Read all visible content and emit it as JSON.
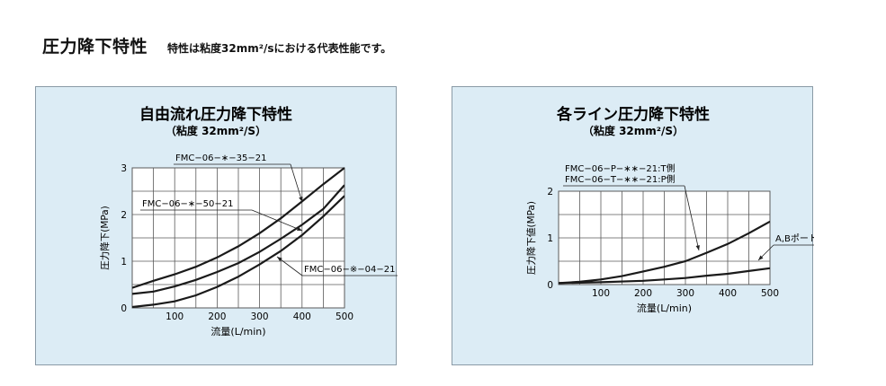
{
  "page": {
    "title": "圧力降下特性",
    "subtitle": "特性は粘度32mm²/sにおける代表性能です。"
  },
  "colors": {
    "panel_bg": "#dcecf5",
    "grid": "#5a5a5a",
    "line": "#1a1a1a",
    "plot_bg": "#ffffff"
  },
  "chart_data": [
    {
      "type": "line",
      "title": "自由流れ圧力降下特性",
      "subtitle": "（粘度 32mm²/S）",
      "xlabel": "流量(L/min)",
      "ylabel": "圧力降下(MPa)",
      "xlim": [
        0,
        500
      ],
      "ylim": [
        0,
        3
      ],
      "x_ticks": [
        100,
        200,
        300,
        400,
        500
      ],
      "y_ticks": [
        0,
        1,
        2,
        3
      ],
      "grid": true,
      "series": [
        {
          "name": "FMC−06−∗−35−21",
          "points": [
            [
              0,
              0.43
            ],
            [
              50,
              0.58
            ],
            [
              100,
              0.72
            ],
            [
              150,
              0.88
            ],
            [
              200,
              1.08
            ],
            [
              250,
              1.32
            ],
            [
              300,
              1.6
            ],
            [
              350,
              1.92
            ],
            [
              400,
              2.28
            ],
            [
              450,
              2.65
            ],
            [
              500,
              3.0
            ]
          ]
        },
        {
          "name": "FMC−06−∗−50−21",
          "points": [
            [
              0,
              0.3
            ],
            [
              50,
              0.35
            ],
            [
              100,
              0.46
            ],
            [
              150,
              0.6
            ],
            [
              200,
              0.77
            ],
            [
              250,
              0.96
            ],
            [
              300,
              1.2
            ],
            [
              350,
              1.48
            ],
            [
              400,
              1.78
            ],
            [
              450,
              2.12
            ],
            [
              500,
              2.63
            ]
          ]
        },
        {
          "name": "FMC−06−※−04−21",
          "points": [
            [
              0,
              0.02
            ],
            [
              50,
              0.07
            ],
            [
              100,
              0.14
            ],
            [
              150,
              0.27
            ],
            [
              200,
              0.45
            ],
            [
              250,
              0.67
            ],
            [
              300,
              0.93
            ],
            [
              350,
              1.22
            ],
            [
              400,
              1.56
            ],
            [
              450,
              1.96
            ],
            [
              500,
              2.4
            ]
          ]
        }
      ],
      "annotations": [
        "FMC−06−∗−35−21",
        "FMC−06−∗−50−21",
        "FMC−06−※−04−21"
      ]
    },
    {
      "type": "line",
      "title": "各ライン圧力降下特性",
      "subtitle": "（粘度 32mm²/S）",
      "xlabel": "流量(L/min)",
      "ylabel": "圧力降下値(MPa)",
      "xlim": [
        0,
        500
      ],
      "ylim": [
        0,
        2
      ],
      "x_ticks": [
        100,
        200,
        300,
        400,
        500
      ],
      "y_ticks": [
        0,
        1,
        2
      ],
      "grid": true,
      "series": [
        {
          "name": "FMC−06−P−∗∗−21:T側 / FMC−06−T−∗∗−21:P側",
          "points": [
            [
              0,
              0.03
            ],
            [
              50,
              0.06
            ],
            [
              100,
              0.11
            ],
            [
              150,
              0.18
            ],
            [
              200,
              0.28
            ],
            [
              250,
              0.38
            ],
            [
              300,
              0.5
            ],
            [
              350,
              0.68
            ],
            [
              400,
              0.87
            ],
            [
              450,
              1.1
            ],
            [
              500,
              1.35
            ]
          ]
        },
        {
          "name": "A,Bポート",
          "points": [
            [
              0,
              0.03
            ],
            [
              100,
              0.05
            ],
            [
              200,
              0.08
            ],
            [
              250,
              0.11
            ],
            [
              300,
              0.14
            ],
            [
              350,
              0.19
            ],
            [
              400,
              0.23
            ],
            [
              450,
              0.29
            ],
            [
              500,
              0.35
            ]
          ]
        }
      ],
      "annotations": [
        "FMC−06−P−∗∗−21:T側",
        "FMC−06−T−∗∗−21:P側",
        "A,Bポート"
      ]
    }
  ]
}
